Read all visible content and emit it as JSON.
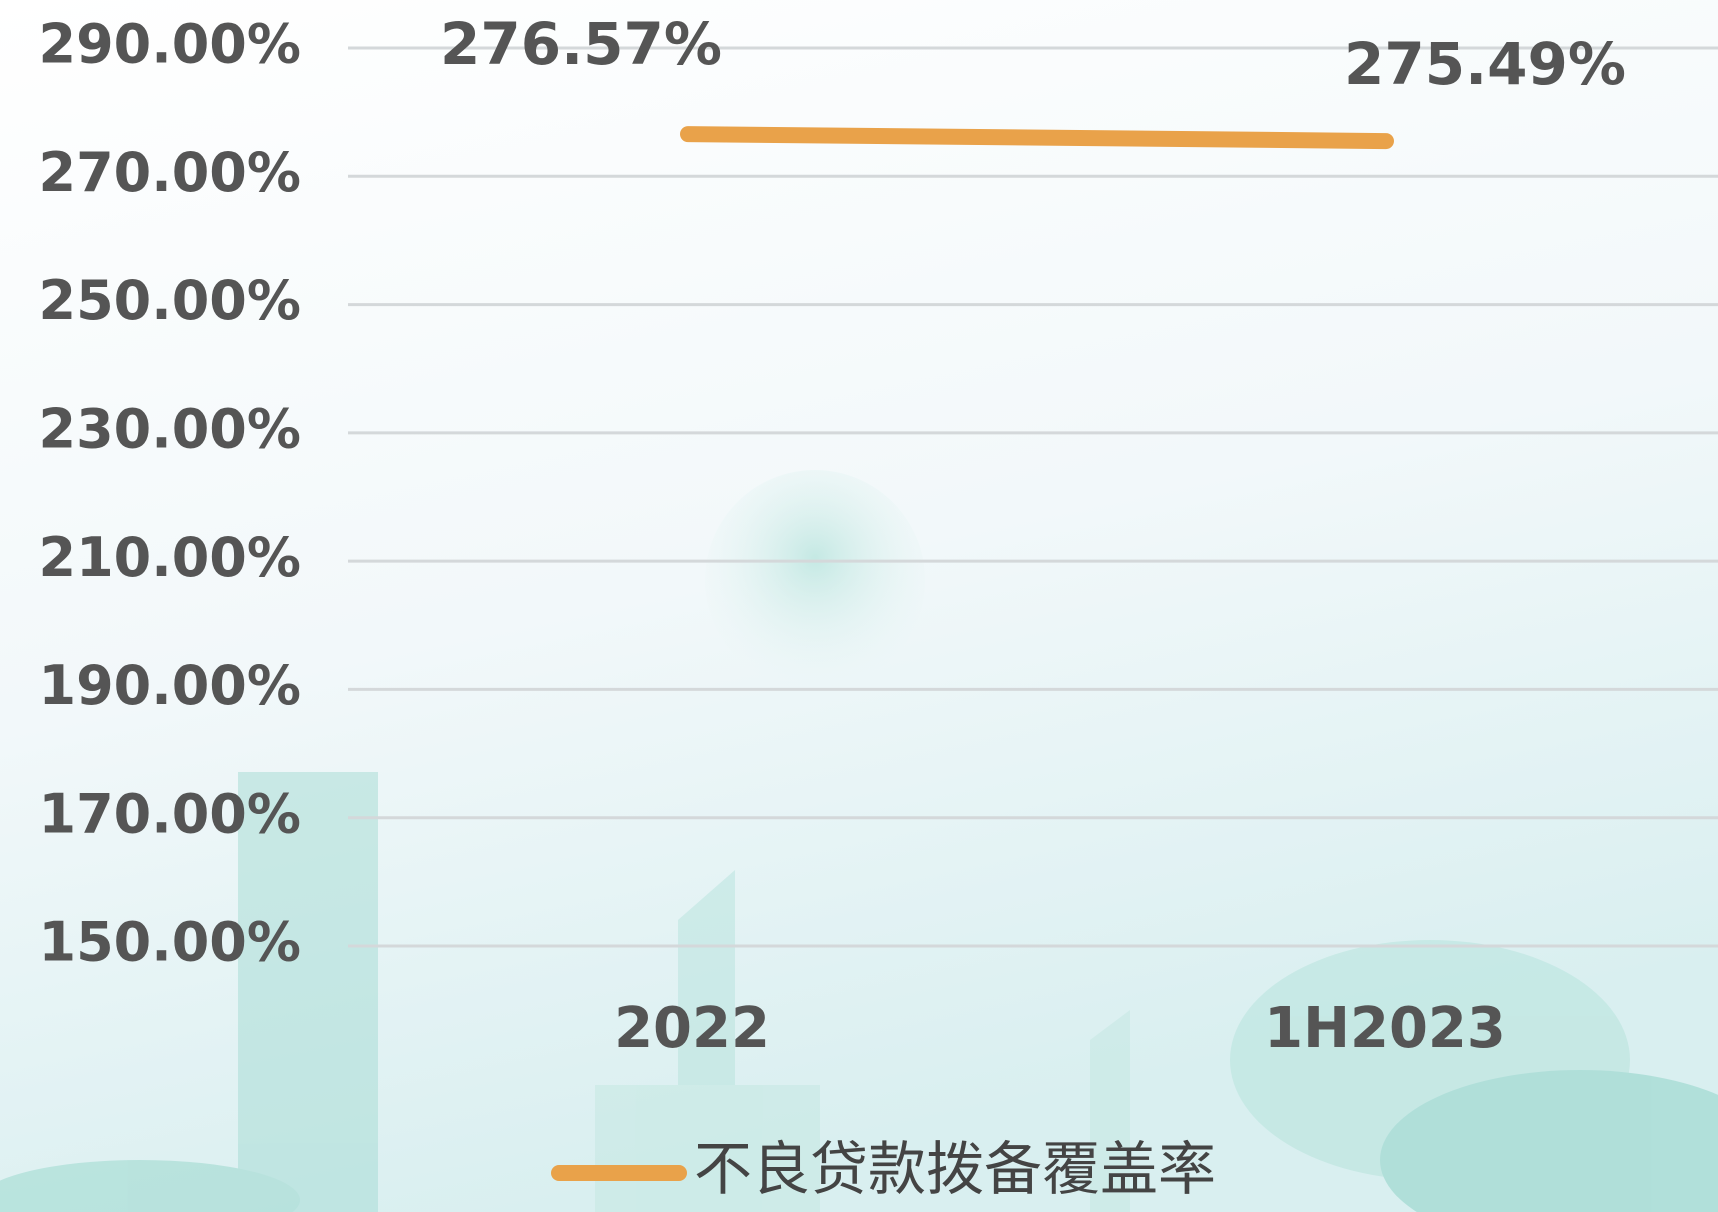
{
  "chart_data": {
    "type": "line",
    "categories": [
      "2022",
      "1H2023"
    ],
    "series": [
      {
        "name": "不良贷款拨备覆盖率",
        "color": "#e9a24a",
        "values": [
          276.57,
          275.49
        ],
        "value_labels": [
          "276.57%",
          "275.49%"
        ]
      }
    ],
    "ylim": [
      150,
      290
    ],
    "yticks": [
      {
        "value": 150,
        "label": "150.00%"
      },
      {
        "value": 170,
        "label": "170.00%"
      },
      {
        "value": 190,
        "label": "190.00%"
      },
      {
        "value": 210,
        "label": "210.00%"
      },
      {
        "value": 230,
        "label": "230.00%"
      },
      {
        "value": 250,
        "label": "250.00%"
      },
      {
        "value": 270,
        "label": "270.00%"
      },
      {
        "value": 290,
        "label": "290.00%"
      }
    ],
    "grid": true,
    "legend": "bottom"
  }
}
